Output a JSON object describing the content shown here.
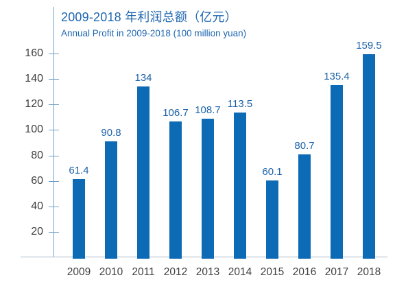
{
  "chart_data": {
    "type": "bar",
    "title": "2009-2018 年利润总额（亿元）",
    "subtitle": "Annual Profit in 2009-2018 (100 million yuan)",
    "categories": [
      "2009",
      "2010",
      "2011",
      "2012",
      "2013",
      "2014",
      "2015",
      "2016",
      "2017",
      "2018"
    ],
    "values": [
      61.4,
      90.8,
      134,
      106.7,
      108.7,
      113.5,
      60.1,
      80.7,
      135.4,
      159.5
    ],
    "value_labels": [
      "61.4",
      "90.8",
      "134",
      "106.7",
      "108.7",
      "113.5",
      "60.1",
      "80.7",
      "135.4",
      "159.5"
    ],
    "yticks": [
      20,
      40,
      60,
      80,
      100,
      120,
      140,
      160
    ],
    "ylim": [
      0,
      160
    ],
    "xlabel": "",
    "ylabel": "",
    "grid": false,
    "legend": "none",
    "colors": {
      "bar": "#0d6ab5",
      "value_label": "#1b61a8",
      "title_text": "#1e66b0",
      "axis_line": "#6f9dc4",
      "baseline": "#a6b8c6",
      "tick_text": "#3f3f3f"
    }
  }
}
